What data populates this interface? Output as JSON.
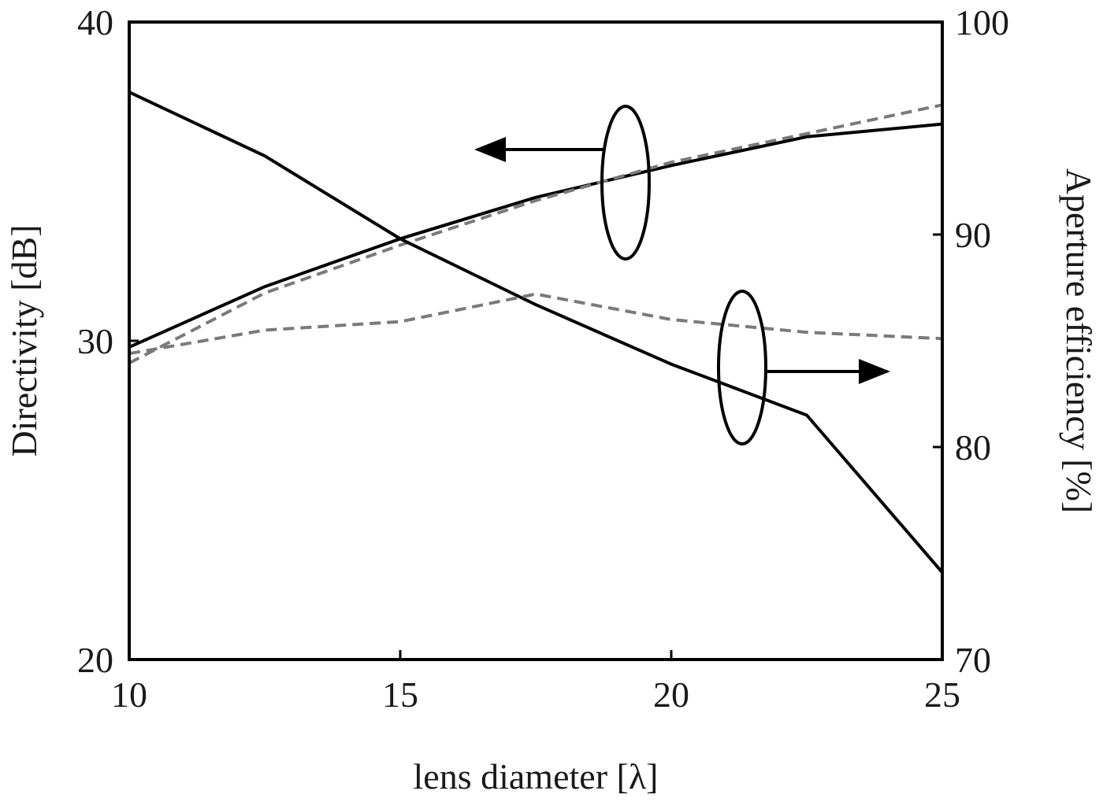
{
  "chart_data": {
    "type": "line",
    "xlabel": "lens diameter [λ]",
    "ylabel_left": "Directivity [dB]",
    "ylabel_right": "Aperture efficiency [%]",
    "xlim": [
      10,
      25
    ],
    "ylim_left": [
      20,
      40
    ],
    "ylim_right": [
      70,
      100
    ],
    "x_ticks": [
      "10",
      "15",
      "20",
      "25"
    ],
    "y_left_ticks": [
      "20",
      "30",
      "40"
    ],
    "y_right_ticks": [
      "70",
      "80",
      "90",
      "100"
    ],
    "grid": false,
    "colors": {
      "solid": "#000000",
      "dashed": "#7a7a7a"
    },
    "series": [
      {
        "axis": "left",
        "style": "solid",
        "x": [
          10,
          12.5,
          15,
          17.5,
          20,
          22.5,
          25
        ],
        "values": [
          29.8,
          31.7,
          33.2,
          34.5,
          35.5,
          36.4,
          36.8
        ]
      },
      {
        "axis": "left",
        "style": "dashed",
        "x": [
          10,
          12.5,
          15,
          17.5,
          20,
          22.5,
          25
        ],
        "values": [
          29.3,
          31.5,
          33.0,
          34.4,
          35.6,
          36.5,
          37.4
        ]
      },
      {
        "axis": "right",
        "style": "solid",
        "x": [
          10,
          12.5,
          15,
          17.5,
          20,
          22.5,
          25
        ],
        "values": [
          96.7,
          93.7,
          89.8,
          86.7,
          83.9,
          81.5,
          74.1
        ]
      },
      {
        "axis": "right",
        "style": "dashed",
        "x": [
          10,
          12.5,
          15,
          17.5,
          20,
          22.5,
          25
        ],
        "values": [
          84.4,
          85.5,
          85.9,
          87.2,
          86.0,
          85.4,
          85.1
        ]
      }
    ],
    "annotations": [
      {
        "type": "ellipse-with-arrow",
        "points_to": "left-axis"
      },
      {
        "type": "ellipse-with-arrow",
        "points_to": "right-axis"
      }
    ]
  }
}
